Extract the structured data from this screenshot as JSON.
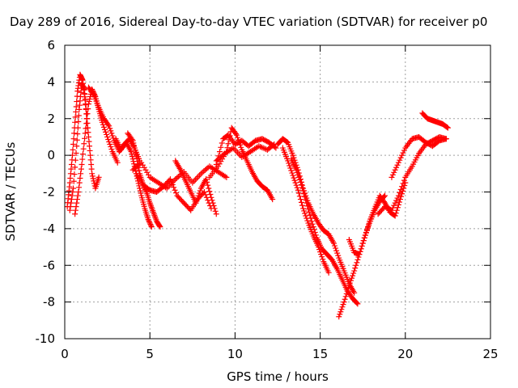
{
  "chart_data": {
    "type": "scatter",
    "title": "Day 289 of 2016, Sidereal Day-to-day VTEC variation (SDTVAR) for receiver p0",
    "xlabel": "GPS time / hours",
    "ylabel": "SDTVAR / TECUs",
    "xlim": [
      0,
      25
    ],
    "ylim": [
      -10,
      6
    ],
    "xticks": [
      0,
      5,
      10,
      15,
      20,
      25
    ],
    "yticks": [
      -10,
      -8,
      -6,
      -4,
      -2,
      0,
      2,
      4,
      6
    ],
    "grid": true,
    "marker": "+",
    "color": "#ff0000",
    "series": [
      {
        "name": "s1",
        "x": [
          0.15,
          0.3,
          0.45,
          0.6,
          0.75,
          0.9,
          1.05,
          1.2,
          1.35
        ],
        "y": [
          -2.8,
          -1.5,
          0.0,
          1.8,
          3.5,
          4.4,
          4.1,
          3.0,
          1.5
        ]
      },
      {
        "name": "s2",
        "x": [
          0.3,
          0.5,
          0.7,
          0.85,
          1.0,
          1.15,
          1.3,
          1.45,
          1.6,
          1.8,
          2.0
        ],
        "y": [
          -3.0,
          -1.8,
          0.5,
          2.5,
          3.9,
          3.6,
          2.0,
          0.5,
          -1.0,
          -1.8,
          -1.2
        ]
      },
      {
        "name": "s3",
        "x": [
          0.6,
          0.8,
          1.0,
          1.2,
          1.4,
          1.6,
          1.8,
          2.0,
          2.2,
          2.5,
          2.8,
          3.1
        ],
        "y": [
          -3.2,
          -2.0,
          -0.5,
          1.2,
          2.8,
          3.6,
          3.2,
          2.5,
          1.8,
          1.0,
          0.2,
          -0.4
        ]
      },
      {
        "name": "s4",
        "x": [
          1.4,
          1.7,
          2.0,
          2.3,
          2.6,
          2.9,
          3.2,
          3.5,
          3.8,
          4.1,
          4.4
        ],
        "y": [
          3.7,
          3.3,
          2.6,
          2.0,
          1.6,
          0.8,
          0.2,
          0.6,
          0.9,
          0.4,
          -0.3
        ]
      },
      {
        "name": "s5",
        "x": [
          3.0,
          3.3,
          3.6,
          3.9,
          4.1,
          4.3,
          4.5,
          4.7,
          4.9,
          5.1
        ],
        "y": [
          0.9,
          0.3,
          0.7,
          0.2,
          -0.6,
          -1.4,
          -2.2,
          -2.9,
          -3.5,
          -3.9
        ]
      },
      {
        "name": "s6",
        "x": [
          3.7,
          4.0,
          4.2,
          4.4,
          4.6,
          4.8,
          5.0,
          5.2,
          5.4,
          5.6
        ],
        "y": [
          1.2,
          0.8,
          0.0,
          -1.0,
          -1.6,
          -2.0,
          -2.6,
          -3.1,
          -3.6,
          -3.9
        ]
      },
      {
        "name": "s7",
        "x": [
          4.0,
          4.5,
          5.0,
          5.5,
          6.0,
          6.5,
          7.0,
          7.5,
          8.0,
          8.5,
          9.0,
          9.5
        ],
        "y": [
          -0.8,
          -0.4,
          -1.2,
          -1.5,
          -1.8,
          -1.3,
          -0.9,
          -1.5,
          -1.0,
          -0.6,
          -0.9,
          -1.2
        ]
      },
      {
        "name": "s8",
        "x": [
          4.2,
          4.6,
          5.0,
          5.4,
          5.8,
          6.2,
          6.6,
          7.0,
          7.4,
          7.8,
          8.2,
          8.6
        ],
        "y": [
          -1.0,
          -1.6,
          -1.9,
          -2.0,
          -1.7,
          -1.3,
          -2.2,
          -2.6,
          -3.0,
          -2.4,
          -2.0,
          -2.9
        ]
      },
      {
        "name": "s9",
        "x": [
          6.5,
          6.8,
          7.1,
          7.4,
          7.7,
          8.0,
          8.3,
          8.6,
          8.9
        ],
        "y": [
          -0.3,
          -0.8,
          -1.4,
          -2.0,
          -2.6,
          -1.8,
          -1.3,
          -2.3,
          -3.2
        ]
      },
      {
        "name": "s10",
        "x": [
          8.5,
          9.0,
          9.5,
          9.8,
          10.1,
          10.4,
          10.7,
          11.0,
          11.3,
          11.6,
          11.9,
          12.2
        ],
        "y": [
          -1.2,
          -0.6,
          0.2,
          1.5,
          1.1,
          0.3,
          -0.3,
          -0.9,
          -1.4,
          -1.7,
          -1.9,
          -2.4
        ]
      },
      {
        "name": "s11",
        "x": [
          8.9,
          9.3,
          9.6,
          10.0,
          10.4,
          10.8,
          11.2,
          11.6,
          12.0,
          12.4
        ],
        "y": [
          -0.5,
          0.9,
          1.1,
          0.6,
          0.8,
          0.5,
          0.8,
          0.9,
          0.7,
          0.4
        ]
      },
      {
        "name": "s12",
        "x": [
          8.9,
          9.4,
          9.9,
          10.4,
          10.9,
          11.4,
          11.9,
          12.3
        ],
        "y": [
          -0.3,
          0.1,
          0.4,
          -0.1,
          0.2,
          0.5,
          0.3,
          0.6
        ]
      },
      {
        "name": "s13",
        "x": [
          12.5,
          12.8,
          13.1,
          13.4,
          13.7,
          14.0,
          14.3,
          14.6,
          14.9,
          15.2,
          15.5,
          15.8,
          16.1,
          16.4,
          16.7,
          17.0
        ],
        "y": [
          0.6,
          0.9,
          0.7,
          0.0,
          -0.8,
          -1.8,
          -2.6,
          -3.2,
          -3.7,
          -4.1,
          -4.3,
          -4.8,
          -5.6,
          -6.3,
          -7.0,
          -7.5
        ]
      },
      {
        "name": "s14",
        "x": [
          12.8,
          13.1,
          13.4,
          13.7,
          14.0,
          14.3,
          14.6,
          14.9,
          15.2,
          15.5
        ],
        "y": [
          0.4,
          -0.3,
          -1.1,
          -1.9,
          -2.9,
          -3.7,
          -4.4,
          -5.0,
          -5.8,
          -6.4
        ]
      },
      {
        "name": "s15",
        "x": [
          13.3,
          13.6,
          13.9,
          14.2,
          14.5,
          14.8,
          15.1,
          15.4,
          15.7,
          16.0,
          16.3,
          16.6,
          16.9,
          17.2
        ],
        "y": [
          -0.2,
          -0.8,
          -1.6,
          -2.6,
          -3.6,
          -4.5,
          -5.1,
          -5.4,
          -5.7,
          -6.2,
          -6.8,
          -7.4,
          -7.8,
          -8.1
        ]
      },
      {
        "name": "s16",
        "x": [
          16.1,
          16.4,
          16.7,
          17.0,
          17.3,
          17.6,
          17.9,
          18.2,
          18.5,
          18.8
        ],
        "y": [
          -8.8,
          -8.0,
          -7.1,
          -6.3,
          -5.4,
          -4.5,
          -3.7,
          -3.0,
          -2.5,
          -2.2
        ]
      },
      {
        "name": "s17",
        "x": [
          16.7,
          17.0,
          17.3,
          17.6,
          17.9,
          18.2,
          18.5,
          18.8,
          19.1,
          19.4,
          19.7,
          20.0
        ],
        "y": [
          -4.6,
          -5.3,
          -5.4,
          -4.5,
          -3.6,
          -2.9,
          -2.2,
          -2.6,
          -3.1,
          -3.3,
          -2.4,
          -1.5
        ]
      },
      {
        "name": "s18",
        "x": [
          18.4,
          18.8,
          19.2,
          19.6,
          20.0,
          20.4,
          20.8,
          21.2,
          21.6,
          22.0,
          22.4
        ],
        "y": [
          -3.2,
          -2.8,
          -3.0,
          -2.2,
          -1.2,
          -0.6,
          0.1,
          0.6,
          0.8,
          1.0,
          0.9
        ]
      },
      {
        "name": "s19",
        "x": [
          19.2,
          19.6,
          20.0,
          20.4,
          20.8,
          21.2,
          21.6,
          22.0,
          22.4
        ],
        "y": [
          -1.2,
          -0.4,
          0.4,
          0.9,
          1.0,
          0.7,
          0.5,
          0.8,
          0.9
        ]
      },
      {
        "name": "s20",
        "x": [
          21.0,
          21.3,
          21.6,
          21.9,
          22.2,
          22.5
        ],
        "y": [
          2.3,
          2.0,
          1.9,
          1.8,
          1.7,
          1.5
        ]
      }
    ]
  }
}
